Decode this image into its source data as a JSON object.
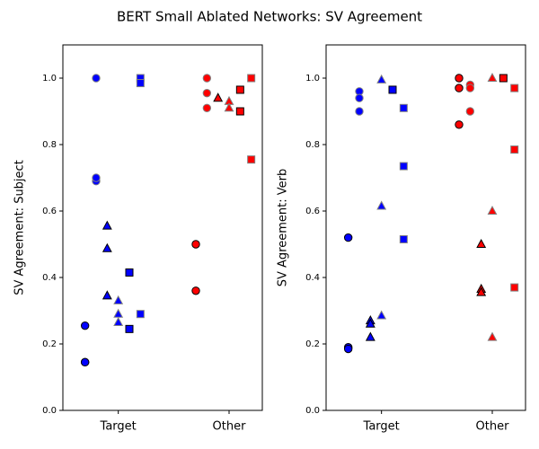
{
  "title": "BERT Small Ablated Networks: SV Agreement",
  "chart_data": [
    {
      "type": "scatter",
      "ylabel": "SV Agreement: Subject",
      "xlim": [
        -0.5,
        1.3
      ],
      "ylim": [
        0,
        1.1
      ],
      "xticks": [
        {
          "value": 0,
          "label": "Target"
        },
        {
          "value": 1,
          "label": "Other"
        }
      ],
      "yticks": [
        {
          "value": 0,
          "label": "0.0"
        },
        0.2,
        0.4,
        0.6,
        0.8,
        {
          "value": 1,
          "label": "1.0"
        }
      ],
      "series": [
        {
          "marker": "circle",
          "color": "#0000ff",
          "edgecolor": "#000000",
          "x": [
            -0.3,
            -0.3,
            -0.3
          ],
          "values": [
            0.255,
            0.145,
            0.145
          ]
        },
        {
          "marker": "circle",
          "color": "#0000ff",
          "edgecolor": "#808080",
          "x": [
            -0.2,
            -0.2,
            -0.2
          ],
          "values": [
            1.0,
            0.69,
            0.7
          ]
        },
        {
          "marker": "triangle",
          "color": "#0000ff",
          "edgecolor": "#000000",
          "x": [
            -0.1,
            -0.1,
            -0.1
          ],
          "values": [
            0.555,
            0.487,
            0.345
          ]
        },
        {
          "marker": "triangle",
          "color": "#0000ff",
          "edgecolor": "#808080",
          "x": [
            0,
            0,
            0
          ],
          "values": [
            0.33,
            0.29,
            0.265
          ]
        },
        {
          "marker": "square",
          "color": "#0000ff",
          "edgecolor": "#000000",
          "x": [
            0.1,
            0.1
          ],
          "values": [
            0.415,
            0.245
          ]
        },
        {
          "marker": "square",
          "color": "#0000ff",
          "edgecolor": "#808080",
          "x": [
            0.2,
            0.2,
            0.2
          ],
          "values": [
            1.0,
            0.985,
            0.29
          ]
        },
        {
          "marker": "circle",
          "color": "#ff0000",
          "edgecolor": "#000000",
          "x": [
            0.7,
            0.7
          ],
          "values": [
            0.5,
            0.36
          ]
        },
        {
          "marker": "circle",
          "color": "#ff0000",
          "edgecolor": "#808080",
          "x": [
            0.8,
            0.8,
            0.8
          ],
          "values": [
            1.0,
            0.955,
            0.91
          ]
        },
        {
          "marker": "triangle",
          "color": "#ff0000",
          "edgecolor": "#000000",
          "x": [
            0.9
          ],
          "values": [
            0.94
          ]
        },
        {
          "marker": "triangle",
          "color": "#ff0000",
          "edgecolor": "#808080",
          "x": [
            1,
            1
          ],
          "values": [
            0.93,
            0.91
          ]
        },
        {
          "marker": "square",
          "color": "#ff0000",
          "edgecolor": "#000000",
          "x": [
            1.1,
            1.1
          ],
          "values": [
            0.965,
            0.9
          ]
        },
        {
          "marker": "square",
          "color": "#ff0000",
          "edgecolor": "#808080",
          "x": [
            1.2,
            1.2
          ],
          "values": [
            1.0,
            0.755
          ]
        }
      ]
    },
    {
      "type": "scatter",
      "ylabel": "SV Agreement: Verb",
      "xlim": [
        -0.5,
        1.3
      ],
      "ylim": [
        0,
        1.1
      ],
      "xticks": [
        {
          "value": 0,
          "label": "Target"
        },
        {
          "value": 1,
          "label": "Other"
        }
      ],
      "yticks": [
        {
          "value": 0,
          "label": "0.0"
        },
        0.2,
        0.4,
        0.6,
        0.8,
        {
          "value": 1,
          "label": "1.0"
        }
      ],
      "series": [
        {
          "marker": "circle",
          "color": "#0000ff",
          "edgecolor": "#000000",
          "x": [
            -0.3,
            -0.3,
            -0.3
          ],
          "values": [
            0.52,
            0.19,
            0.185
          ]
        },
        {
          "marker": "circle",
          "color": "#0000ff",
          "edgecolor": "#808080",
          "x": [
            -0.2,
            -0.2,
            -0.2
          ],
          "values": [
            0.96,
            0.94,
            0.9
          ]
        },
        {
          "marker": "triangle",
          "color": "#0000ff",
          "edgecolor": "#000000",
          "x": [
            -0.1,
            -0.1,
            -0.1
          ],
          "values": [
            0.27,
            0.26,
            0.22
          ]
        },
        {
          "marker": "triangle",
          "color": "#0000ff",
          "edgecolor": "#808080",
          "x": [
            0,
            0,
            0
          ],
          "values": [
            0.995,
            0.615,
            0.285
          ]
        },
        {
          "marker": "square",
          "color": "#0000ff",
          "edgecolor": "#000000",
          "x": [
            0.1
          ],
          "values": [
            0.965
          ]
        },
        {
          "marker": "square",
          "color": "#0000ff",
          "edgecolor": "#808080",
          "x": [
            0.2,
            0.2,
            0.2
          ],
          "values": [
            0.91,
            0.735,
            0.515
          ]
        },
        {
          "marker": "circle",
          "color": "#ff0000",
          "edgecolor": "#000000",
          "x": [
            0.7,
            0.7,
            0.7
          ],
          "values": [
            1.0,
            0.97,
            0.86
          ]
        },
        {
          "marker": "circle",
          "color": "#ff0000",
          "edgecolor": "#808080",
          "x": [
            0.8,
            0.8,
            0.8
          ],
          "values": [
            0.98,
            0.97,
            0.9
          ]
        },
        {
          "marker": "triangle",
          "color": "#ff0000",
          "edgecolor": "#000000",
          "x": [
            0.9,
            0.9,
            0.9
          ],
          "values": [
            0.5,
            0.365,
            0.355
          ]
        },
        {
          "marker": "triangle",
          "color": "#ff0000",
          "edgecolor": "#808080",
          "x": [
            1,
            1,
            1
          ],
          "values": [
            1.0,
            0.6,
            0.22
          ]
        },
        {
          "marker": "square",
          "color": "#ff0000",
          "edgecolor": "#000000",
          "x": [
            1.1
          ],
          "values": [
            1.0
          ]
        },
        {
          "marker": "square",
          "color": "#ff0000",
          "edgecolor": "#808080",
          "x": [
            1.2,
            1.2,
            1.2
          ],
          "values": [
            0.97,
            0.785,
            0.37
          ]
        }
      ]
    }
  ]
}
